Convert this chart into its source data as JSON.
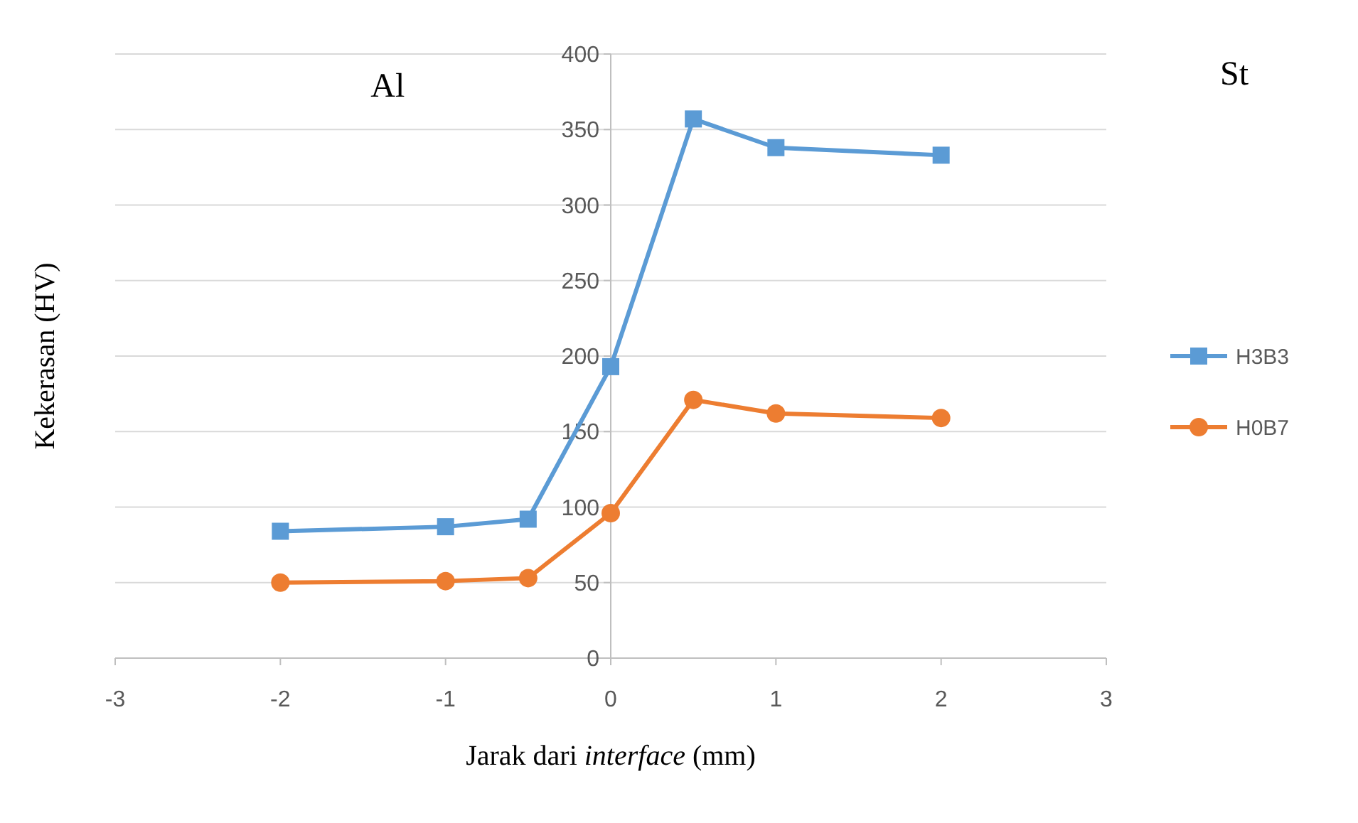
{
  "chart_data": {
    "type": "line",
    "xlabel": "Jarak dari interface (mm)",
    "ylabel": "Kekerasan (HV)",
    "x": [
      -2,
      -1,
      -0.5,
      0,
      0.5,
      1,
      2
    ],
    "series": [
      {
        "name": "H3B3",
        "color": "#5b9bd5",
        "marker": "square",
        "values": [
          84,
          87,
          92,
          193,
          357,
          338,
          333
        ]
      },
      {
        "name": "H0B7",
        "color": "#ed7d31",
        "marker": "circle",
        "values": [
          50,
          51,
          53,
          96,
          171,
          162,
          159
        ]
      }
    ],
    "xlim": [
      -3,
      3
    ],
    "xticks": [
      -3,
      -2,
      -1,
      0,
      1,
      2,
      3
    ],
    "ylim": [
      0,
      400
    ],
    "yticks": [
      0,
      50,
      100,
      150,
      200,
      250,
      300,
      350,
      400
    ],
    "grid": "y",
    "legend": "right",
    "line_style": "solid",
    "annotations": [
      "Al",
      "St"
    ]
  }
}
